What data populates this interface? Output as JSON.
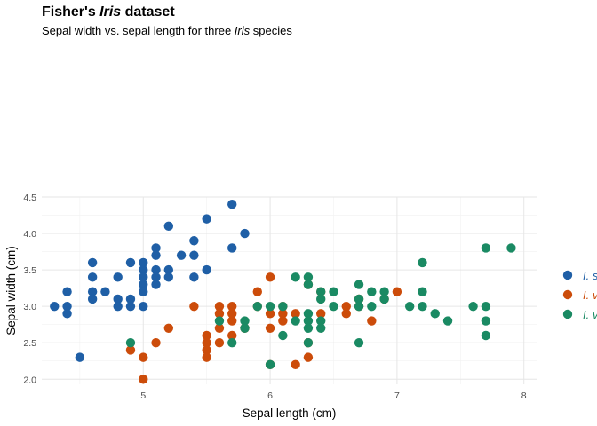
{
  "chart_data": {
    "type": "scatter",
    "title_prefix": "Fisher's ",
    "title_italic": "Iris",
    "title_suffix": " dataset",
    "subtitle_prefix": "Sepal width vs. sepal length for three ",
    "subtitle_italic": "Iris",
    "subtitle_suffix": " species",
    "xlabel": "Sepal length (cm)",
    "ylabel": "Sepal width (cm)",
    "xlim": [
      4.2,
      8.1
    ],
    "ylim": [
      1.93,
      4.5
    ],
    "xticks": [
      5,
      6,
      7,
      8
    ],
    "yticks": [
      2.0,
      2.5,
      3.0,
      3.5,
      4.0,
      4.5
    ],
    "ytick_labels": [
      "2.0",
      "2.5",
      "3.0",
      "3.5",
      "4.0",
      "4.5"
    ],
    "grid": true,
    "legend_position": "right",
    "series": [
      {
        "name": "I. s",
        "color": "#1f5fa6",
        "points": [
          [
            4.3,
            3.0
          ],
          [
            4.4,
            3.2
          ],
          [
            4.4,
            3.0
          ],
          [
            4.4,
            2.9
          ],
          [
            4.5,
            2.3
          ],
          [
            4.6,
            3.6
          ],
          [
            4.6,
            3.4
          ],
          [
            4.6,
            3.2
          ],
          [
            4.6,
            3.1
          ],
          [
            4.7,
            3.2
          ],
          [
            4.8,
            3.4
          ],
          [
            4.8,
            3.1
          ],
          [
            4.8,
            3.0
          ],
          [
            4.9,
            3.6
          ],
          [
            4.9,
            3.1
          ],
          [
            4.9,
            3.0
          ],
          [
            5.0,
            3.6
          ],
          [
            5.0,
            3.5
          ],
          [
            5.0,
            3.4
          ],
          [
            5.0,
            3.3
          ],
          [
            5.0,
            3.2
          ],
          [
            5.0,
            3.0
          ],
          [
            5.1,
            3.8
          ],
          [
            5.1,
            3.7
          ],
          [
            5.1,
            3.5
          ],
          [
            5.1,
            3.4
          ],
          [
            5.1,
            3.3
          ],
          [
            5.2,
            4.1
          ],
          [
            5.2,
            3.5
          ],
          [
            5.2,
            3.4
          ],
          [
            5.3,
            3.7
          ],
          [
            5.4,
            3.9
          ],
          [
            5.4,
            3.7
          ],
          [
            5.4,
            3.4
          ],
          [
            5.5,
            4.2
          ],
          [
            5.5,
            3.5
          ],
          [
            5.7,
            4.4
          ],
          [
            5.7,
            3.8
          ],
          [
            5.8,
            4.0
          ]
        ]
      },
      {
        "name": "I. v",
        "color": "#cc4c0a",
        "points": [
          [
            4.9,
            2.4
          ],
          [
            5.0,
            2.3
          ],
          [
            5.0,
            2.0
          ],
          [
            5.1,
            2.5
          ],
          [
            5.2,
            2.7
          ],
          [
            5.4,
            3.0
          ],
          [
            5.5,
            2.6
          ],
          [
            5.5,
            2.5
          ],
          [
            5.5,
            2.4
          ],
          [
            5.5,
            2.3
          ],
          [
            5.6,
            3.0
          ],
          [
            5.6,
            2.9
          ],
          [
            5.6,
            2.7
          ],
          [
            5.6,
            2.5
          ],
          [
            5.7,
            3.0
          ],
          [
            5.7,
            2.9
          ],
          [
            5.7,
            2.8
          ],
          [
            5.7,
            2.6
          ],
          [
            5.8,
            2.7
          ],
          [
            5.9,
            3.2
          ],
          [
            5.9,
            3.0
          ],
          [
            6.0,
            3.4
          ],
          [
            6.0,
            2.9
          ],
          [
            6.0,
            2.7
          ],
          [
            6.0,
            2.2
          ],
          [
            6.1,
            3.0
          ],
          [
            6.1,
            2.9
          ],
          [
            6.1,
            2.8
          ],
          [
            6.2,
            2.9
          ],
          [
            6.2,
            2.2
          ],
          [
            6.3,
            3.3
          ],
          [
            6.3,
            2.5
          ],
          [
            6.3,
            2.3
          ],
          [
            6.4,
            3.2
          ],
          [
            6.4,
            2.9
          ],
          [
            6.6,
            3.0
          ],
          [
            6.6,
            2.9
          ],
          [
            6.7,
            3.1
          ],
          [
            6.7,
            3.0
          ],
          [
            6.8,
            2.8
          ],
          [
            6.9,
            3.1
          ],
          [
            7.0,
            3.2
          ]
        ]
      },
      {
        "name": "I. v",
        "color": "#1a8a63",
        "points": [
          [
            4.9,
            2.5
          ],
          [
            5.6,
            2.8
          ],
          [
            5.7,
            2.5
          ],
          [
            5.8,
            2.8
          ],
          [
            5.8,
            2.7
          ],
          [
            5.9,
            3.0
          ],
          [
            6.0,
            3.0
          ],
          [
            6.0,
            2.2
          ],
          [
            6.1,
            3.0
          ],
          [
            6.1,
            2.6
          ],
          [
            6.2,
            3.4
          ],
          [
            6.2,
            2.8
          ],
          [
            6.3,
            3.4
          ],
          [
            6.3,
            3.3
          ],
          [
            6.3,
            2.9
          ],
          [
            6.3,
            2.8
          ],
          [
            6.3,
            2.7
          ],
          [
            6.3,
            2.5
          ],
          [
            6.4,
            3.2
          ],
          [
            6.4,
            3.1
          ],
          [
            6.4,
            2.8
          ],
          [
            6.4,
            2.7
          ],
          [
            6.5,
            3.2
          ],
          [
            6.5,
            3.0
          ],
          [
            6.7,
            3.3
          ],
          [
            6.7,
            3.1
          ],
          [
            6.7,
            3.0
          ],
          [
            6.7,
            2.5
          ],
          [
            6.8,
            3.2
          ],
          [
            6.8,
            3.0
          ],
          [
            6.9,
            3.2
          ],
          [
            6.9,
            3.1
          ],
          [
            7.1,
            3.0
          ],
          [
            7.2,
            3.6
          ],
          [
            7.2,
            3.2
          ],
          [
            7.2,
            3.0
          ],
          [
            7.3,
            2.9
          ],
          [
            7.4,
            2.8
          ],
          [
            7.6,
            3.0
          ],
          [
            7.7,
            3.8
          ],
          [
            7.7,
            3.0
          ],
          [
            7.7,
            2.8
          ],
          [
            7.7,
            2.6
          ],
          [
            7.9,
            3.8
          ]
        ]
      }
    ]
  }
}
